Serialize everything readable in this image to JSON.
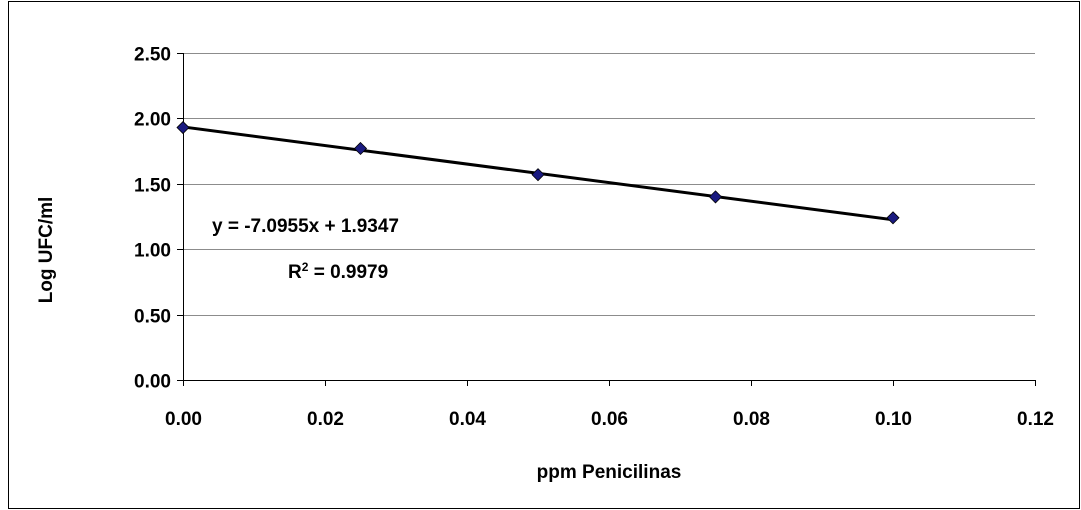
{
  "chart_data": {
    "type": "scatter",
    "title": "",
    "xlabel": "ppm  Penicilinas",
    "ylabel": "Log UFC/ml",
    "xlim": [
      0,
      0.12
    ],
    "ylim": [
      0,
      2.5
    ],
    "x_ticks": [
      0,
      0.02,
      0.04,
      0.06,
      0.08,
      0.1,
      0.12
    ],
    "x_tick_labels": [
      "0.00",
      "0.02",
      "0.04",
      "0.06",
      "0.08",
      "0.10",
      "0.12"
    ],
    "y_ticks": [
      0,
      0.5,
      1.0,
      1.5,
      2.0,
      2.5
    ],
    "y_tick_labels": [
      "0.00",
      "0.50",
      "1.00",
      "1.50",
      "2.00",
      "2.50"
    ],
    "grid": "horizontal",
    "legend": "none",
    "series": [
      {
        "x": [
          0,
          0.025,
          0.05,
          0.075,
          0.1
        ],
        "y": [
          1.93,
          1.77,
          1.57,
          1.4,
          1.24
        ],
        "marker": "diamond",
        "color": "#1a1a80"
      }
    ],
    "trendline": {
      "slope": -7.0955,
      "intercept": 1.9347,
      "x_range": [
        0,
        0.1
      ],
      "color": "#000000"
    },
    "annotations": {
      "equation": "y = -7.0955x + 1.9347",
      "r2_prefix": "R",
      "r2_sup": "2",
      "r2_value": " = 0.9979"
    }
  }
}
